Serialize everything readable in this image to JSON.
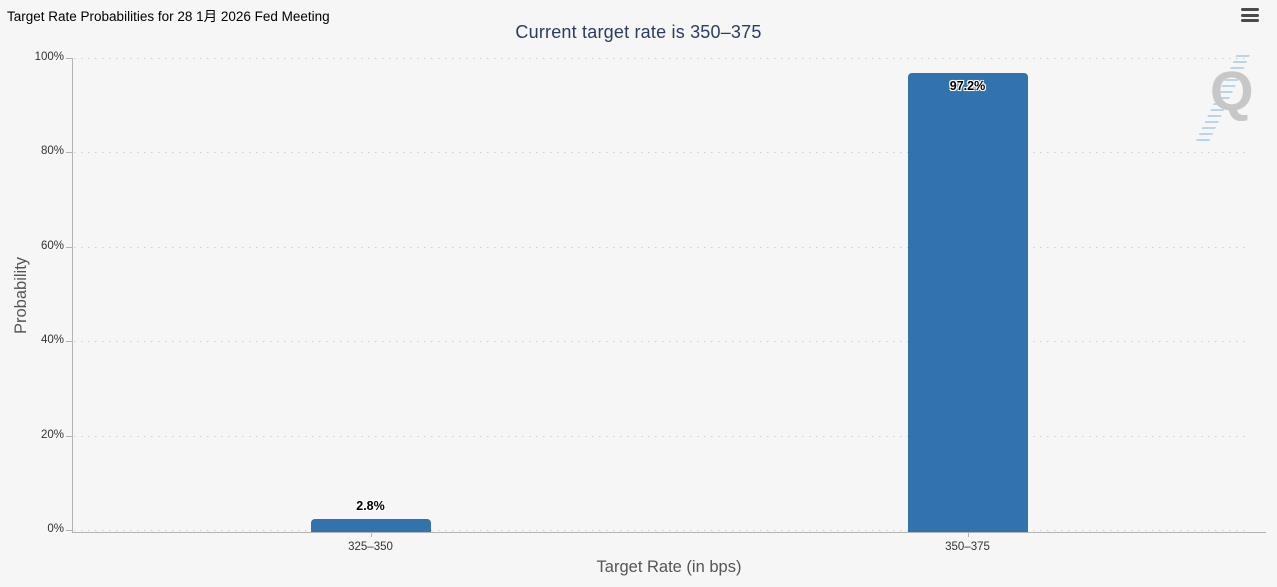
{
  "page": {
    "background_color": "#f6f6f6"
  },
  "header": {
    "title": "Target Rate Probabilities for 28 1月 2026 Fed Meeting",
    "menu_icon": "hamburger-menu-icon"
  },
  "chart_data": {
    "type": "bar",
    "title": "Current target rate is 350–375",
    "xlabel": "Target Rate (in bps)",
    "ylabel": "Probability",
    "categories": [
      "325–350",
      "350–375"
    ],
    "values": [
      2.8,
      97.2
    ],
    "value_labels": [
      "2.8%",
      "97.2%"
    ],
    "ylim": [
      0,
      100
    ],
    "yticks": [
      {
        "value": 0,
        "label": "0%"
      },
      {
        "value": 20,
        "label": "20%"
      },
      {
        "value": 40,
        "label": "40%"
      },
      {
        "value": 60,
        "label": "60%"
      },
      {
        "value": 80,
        "label": "80%"
      },
      {
        "value": 100,
        "label": "100%"
      }
    ],
    "grid": "horizontal-dotted",
    "legend": "none",
    "bar_color": "#3273ad",
    "title_color": "#2c3c60"
  },
  "watermark": {
    "letter": "Q"
  }
}
